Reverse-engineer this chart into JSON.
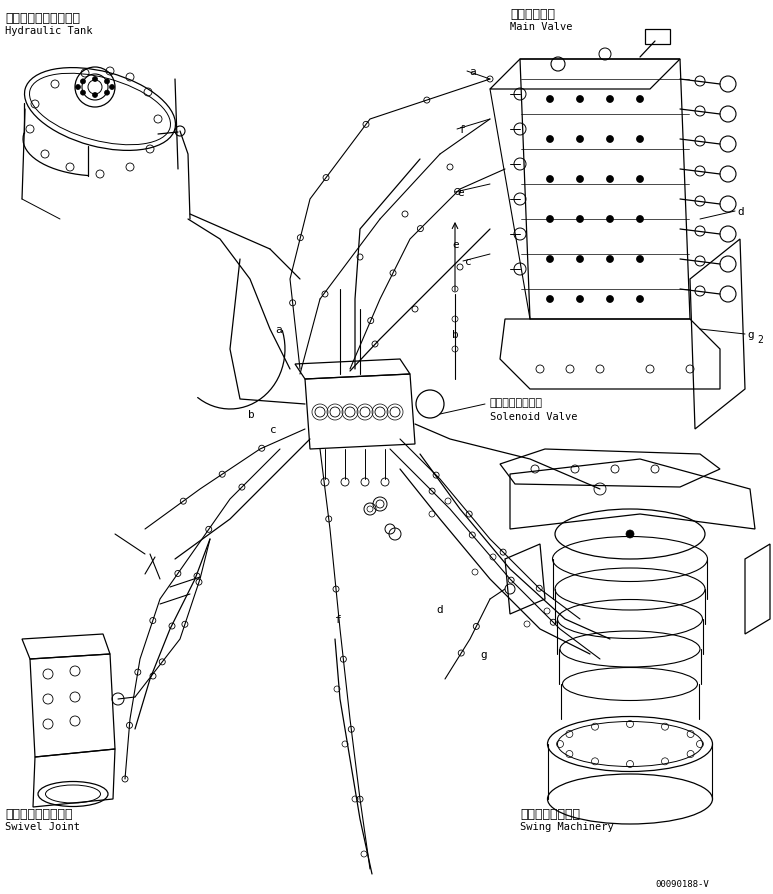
{
  "background_color": "#ffffff",
  "fig_width": 7.73,
  "fig_height": 8.95,
  "dpi": 100,
  "labels": {
    "hydraulic_tank_jp": "ハイドロリックタンク",
    "hydraulic_tank_en": "Hydraulic Tank",
    "main_valve_jp": "メインバルブ",
    "main_valve_en": "Main Valve",
    "solenoid_valve_jp": "ソレノイドバルブ",
    "solenoid_valve_en": "Solenoid Valve",
    "swivel_joint_jp": "スイベルジョイント",
    "swivel_joint_en": "Swivel Joint",
    "swing_machinery_jp": "スイングマシナリ",
    "swing_machinery_en": "Swing Machinery",
    "part_number": "00090188-V"
  },
  "text_color": "#000000",
  "line_color": "#000000"
}
